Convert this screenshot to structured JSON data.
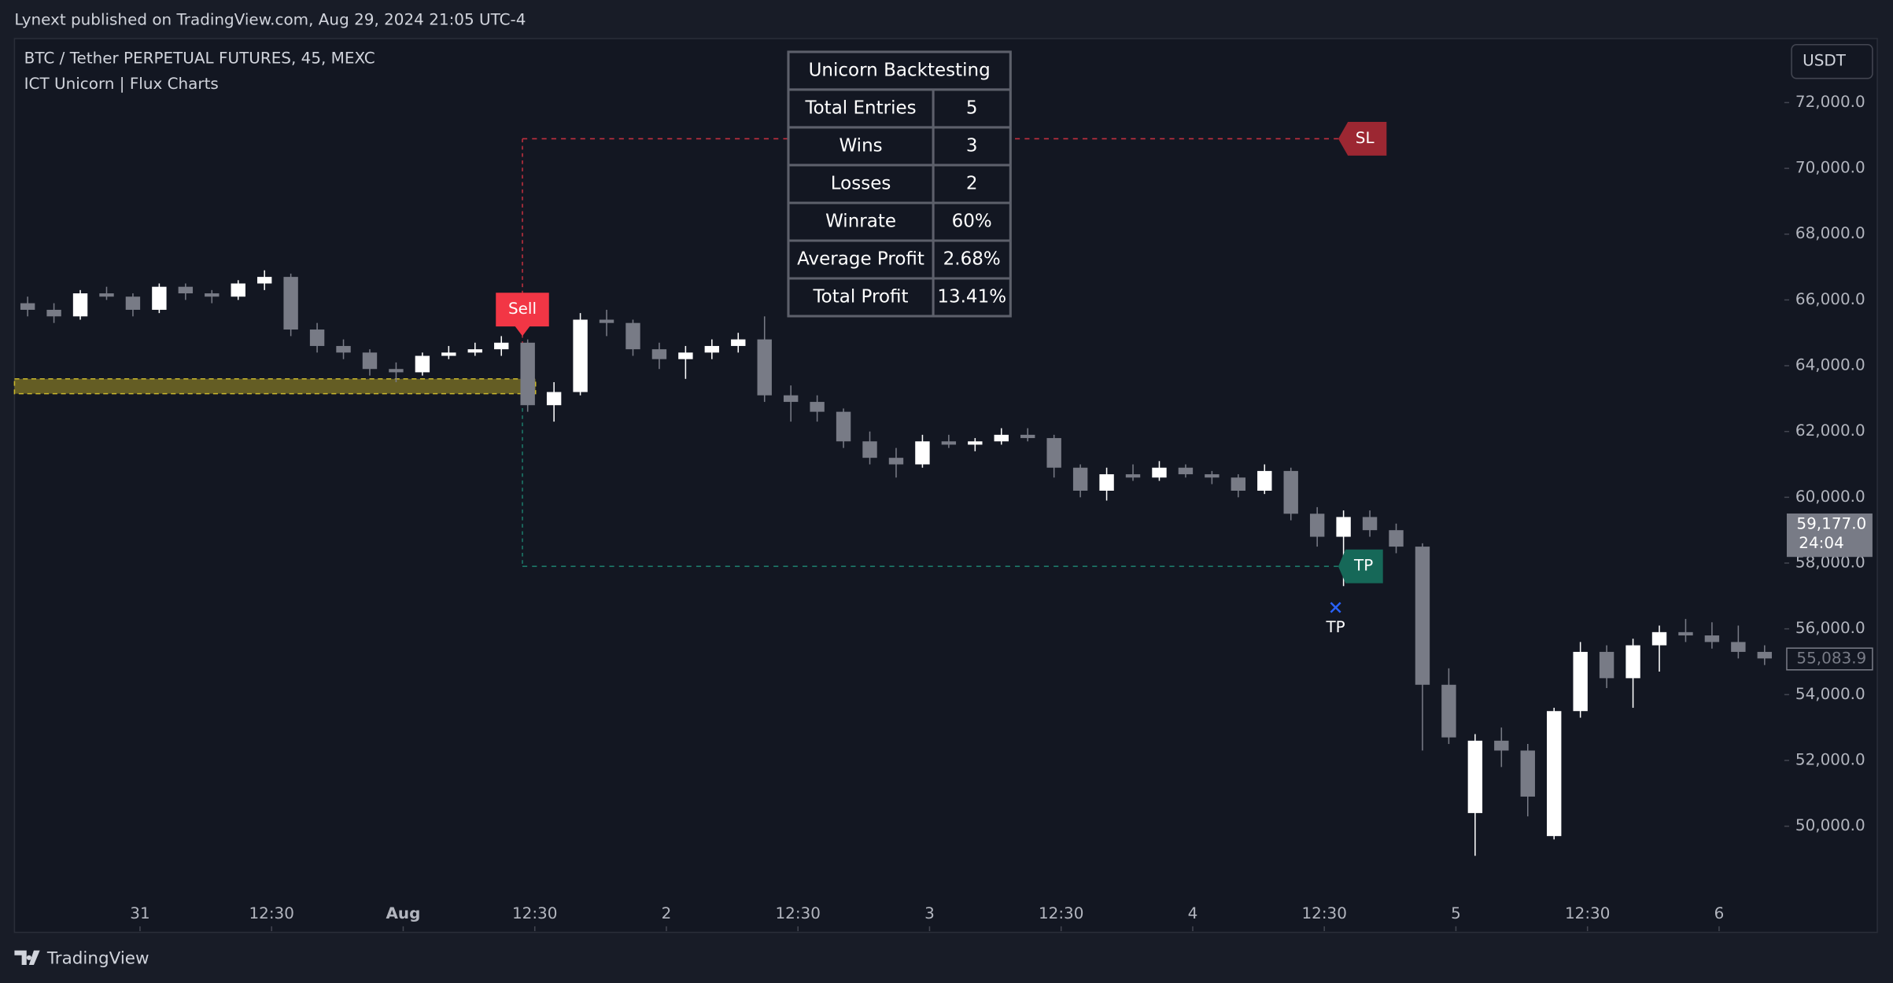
{
  "header": {
    "text": "Lynext published on TradingView.com, Aug 29, 2024 21:05 UTC-4"
  },
  "footer": {
    "text": "TradingView"
  },
  "table": {
    "title": "Unicorn Backtesting",
    "rows": [
      [
        "Total Entries",
        "5"
      ],
      [
        "Wins",
        "3"
      ],
      [
        "Losses",
        "2"
      ],
      [
        "Winrate",
        "60%"
      ],
      [
        "Average Profit",
        "2.68%"
      ],
      [
        "Total Profit",
        "13.41%"
      ]
    ]
  },
  "chart_data": {
    "type": "candlestick",
    "title": "BTC / Tether PERPETUAL FUTURES, 45, MEXC",
    "subtitle": "ICT Unicorn | Flux Charts",
    "currency": "USDT",
    "up_color": "#ffffff",
    "down_color": "#787b86",
    "candles": [
      [
        65900,
        66100,
        65500,
        65700
      ],
      [
        65700,
        65900,
        65300,
        65500
      ],
      [
        65500,
        66300,
        65400,
        66200
      ],
      [
        66200,
        66400,
        66000,
        66100
      ],
      [
        66100,
        66200,
        65500,
        65700
      ],
      [
        65700,
        66500,
        65600,
        66400
      ],
      [
        66400,
        66500,
        66000,
        66200
      ],
      [
        66200,
        66300,
        65900,
        66100
      ],
      [
        66100,
        66600,
        66000,
        66500
      ],
      [
        66500,
        66900,
        66300,
        66700
      ],
      [
        66700,
        66800,
        64900,
        65100
      ],
      [
        65100,
        65300,
        64400,
        64600
      ],
      [
        64600,
        64800,
        64200,
        64400
      ],
      [
        64400,
        64500,
        63700,
        63900
      ],
      [
        63900,
        64100,
        63500,
        63800
      ],
      [
        63800,
        64400,
        63700,
        64300
      ],
      [
        64300,
        64600,
        64200,
        64400
      ],
      [
        64400,
        64700,
        64300,
        64500
      ],
      [
        64500,
        64900,
        64300,
        64700
      ],
      [
        64700,
        64800,
        62600,
        62800
      ],
      [
        62800,
        63500,
        62300,
        63200
      ],
      [
        63200,
        65600,
        63100,
        65400
      ],
      [
        65400,
        65700,
        64900,
        65300
      ],
      [
        65300,
        65400,
        64300,
        64500
      ],
      [
        64500,
        64700,
        63900,
        64200
      ],
      [
        64200,
        64600,
        63600,
        64400
      ],
      [
        64400,
        64800,
        64200,
        64600
      ],
      [
        64600,
        65000,
        64400,
        64800
      ],
      [
        64800,
        65500,
        62900,
        63100
      ],
      [
        63100,
        63400,
        62300,
        62900
      ],
      [
        62900,
        63100,
        62300,
        62600
      ],
      [
        62600,
        62700,
        61500,
        61700
      ],
      [
        61700,
        62000,
        61000,
        61200
      ],
      [
        61200,
        61500,
        60600,
        61000
      ],
      [
        61000,
        61900,
        60900,
        61700
      ],
      [
        61700,
        61900,
        61500,
        61600
      ],
      [
        61600,
        61800,
        61400,
        61700
      ],
      [
        61700,
        62100,
        61600,
        61900
      ],
      [
        61900,
        62100,
        61700,
        61800
      ],
      [
        61800,
        61900,
        60600,
        60900
      ],
      [
        60900,
        61000,
        60000,
        60200
      ],
      [
        60200,
        60900,
        59900,
        60700
      ],
      [
        60700,
        61000,
        60500,
        60600
      ],
      [
        60600,
        61100,
        60500,
        60900
      ],
      [
        60900,
        61000,
        60600,
        60700
      ],
      [
        60700,
        60800,
        60400,
        60600
      ],
      [
        60600,
        60700,
        60000,
        60200
      ],
      [
        60200,
        61000,
        60100,
        60800
      ],
      [
        60800,
        60900,
        59300,
        59500
      ],
      [
        59500,
        59700,
        58500,
        58800
      ],
      [
        58800,
        59600,
        57300,
        59400
      ],
      [
        59400,
        59600,
        58800,
        59000
      ],
      [
        59000,
        59200,
        58300,
        58500
      ],
      [
        58500,
        58600,
        52300,
        54300
      ],
      [
        54300,
        54800,
        52500,
        52700
      ],
      [
        50400,
        52800,
        49100,
        52600
      ],
      [
        52600,
        53000,
        51800,
        52300
      ],
      [
        52300,
        52500,
        50300,
        50900
      ],
      [
        49700,
        53600,
        49600,
        53500
      ],
      [
        53500,
        55600,
        53300,
        55300
      ],
      [
        55300,
        55500,
        54200,
        54500
      ],
      [
        54500,
        55700,
        53600,
        55500
      ],
      [
        55500,
        56100,
        54700,
        55900
      ],
      [
        55900,
        56300,
        55600,
        55800
      ],
      [
        55800,
        56200,
        55400,
        55600
      ],
      [
        55600,
        56100,
        55100,
        55300
      ],
      [
        55300,
        55500,
        54900,
        55100
      ]
    ],
    "xlim": [
      0,
      67.25
    ],
    "xticks": [
      {
        "value": 4.77,
        "label": "31"
      },
      {
        "value": 9.77,
        "label": "12:30"
      },
      {
        "value": 14.77,
        "label": "Aug"
      },
      {
        "value": 19.77,
        "label": "12:30"
      },
      {
        "value": 24.77,
        "label": "2"
      },
      {
        "value": 29.77,
        "label": "12:30"
      },
      {
        "value": 34.77,
        "label": "3"
      },
      {
        "value": 39.77,
        "label": "12:30"
      },
      {
        "value": 44.77,
        "label": "4"
      },
      {
        "value": 49.77,
        "label": "12:30"
      },
      {
        "value": 54.77,
        "label": "5"
      },
      {
        "value": 59.77,
        "label": "12:30"
      },
      {
        "value": 64.77,
        "label": "6"
      }
    ],
    "ylim": [
      46810,
      73945
    ],
    "yticks": [
      {
        "value": 50000,
        "label": "50,000.0"
      },
      {
        "value": 52000,
        "label": "52,000.0"
      },
      {
        "value": 54000,
        "label": "54,000.0"
      },
      {
        "value": 56000,
        "label": "56,000.0"
      },
      {
        "value": 58000,
        "label": "58,000.0"
      },
      {
        "value": 60000,
        "label": "60,000.0"
      },
      {
        "value": 62000,
        "label": "62,000.0"
      },
      {
        "value": 64000,
        "label": "64,000.0"
      },
      {
        "value": 66000,
        "label": "66,000.0"
      },
      {
        "value": 68000,
        "label": "68,000.0"
      },
      {
        "value": 70000,
        "label": "70,000.0"
      },
      {
        "value": 72000,
        "label": "72,000.0"
      }
    ],
    "zone": {
      "range": [
        63150,
        63600
      ],
      "end": 19.8
    },
    "signal": {
      "label": "Sell",
      "index": 19.3,
      "price": 64900
    },
    "stop_loss": {
      "label": "SL",
      "value": 70900,
      "end": 50.3
    },
    "take_profit": {
      "label": "TP",
      "value": 57900,
      "end": 50.3
    },
    "exit_marker": {
      "label": "TP",
      "index": 50.2,
      "price": 56650
    },
    "last_price": {
      "value": 59177,
      "label": "59,177.0",
      "countdown": "24:04"
    },
    "line_price": {
      "value": 55083.9,
      "label": "55,083.9"
    }
  }
}
